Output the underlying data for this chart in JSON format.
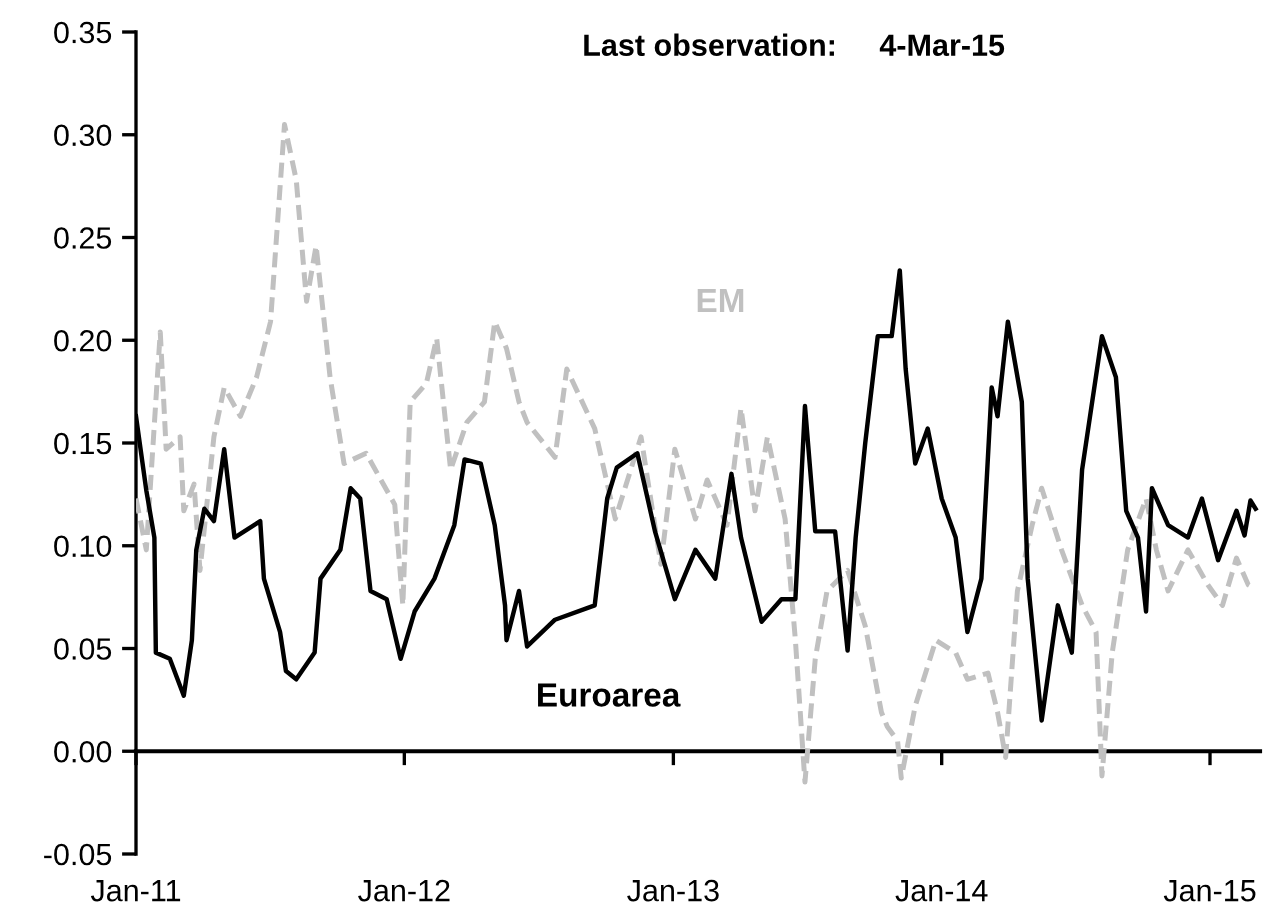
{
  "chart_data": {
    "type": "line",
    "annotations": [
      "Last observation:     4-Mar-15"
    ],
    "xlim": [
      "2011-01-01",
      "2015-03-10"
    ],
    "xticks": [
      {
        "value": "2011-01-01",
        "label": "Jan-11"
      },
      {
        "value": "2012-01-01",
        "label": "Jan-12"
      },
      {
        "value": "2013-01-01",
        "label": "Jan-13"
      },
      {
        "value": "2014-01-01",
        "label": "Jan-14"
      },
      {
        "value": "2015-01-01",
        "label": "Jan-15"
      }
    ],
    "ylim": [
      -0.05,
      0.35
    ],
    "yticks": [
      -0.05,
      {
        "value": 0,
        "label": "0.00"
      },
      0.05,
      {
        "value": 0.1,
        "label": "0.10"
      },
      0.15,
      {
        "value": 0.2,
        "label": "0.20"
      },
      0.25,
      {
        "value": 0.3,
        "label": "0.30"
      },
      0.35
    ],
    "series": [
      {
        "name": "EM",
        "color": "#c0c0c0",
        "line_style": "dashed",
        "x": [
          "2011-01-01",
          "2011-01-15",
          "2011-02-03",
          "2011-02-11",
          "2011-03-02",
          "2011-03-07",
          "2011-03-21",
          "2011-03-29",
          "2011-04-17",
          "2011-05-01",
          "2011-05-23",
          "2011-06-14",
          "2011-07-03",
          "2011-07-22",
          "2011-08-07",
          "2011-08-21",
          "2011-09-03",
          "2011-09-22",
          "2011-10-11",
          "2011-11-10",
          "2011-12-19",
          "2011-12-30",
          "2012-01-09",
          "2012-01-31",
          "2012-02-14",
          "2012-03-04",
          "2012-03-26",
          "2012-04-19",
          "2012-05-03",
          "2012-05-19",
          "2012-06-05",
          "2012-06-16",
          "2012-07-24",
          "2012-08-09",
          "2012-09-16",
          "2012-10-14",
          "2012-11-18",
          "2012-12-15",
          "2013-01-03",
          "2013-01-31",
          "2013-02-16",
          "2013-03-15",
          "2013-04-03",
          "2013-04-22",
          "2013-05-09",
          "2013-06-02",
          "2013-06-16",
          "2013-06-29",
          "2013-07-13",
          "2013-07-29",
          "2013-08-26",
          "2013-09-19",
          "2013-10-11",
          "2013-10-19",
          "2013-11-02",
          "2013-11-07",
          "2013-11-26",
          "2013-12-24",
          "2014-01-20",
          "2014-02-05",
          "2014-03-05",
          "2014-03-18",
          "2014-03-29",
          "2014-04-14",
          "2014-05-04",
          "2014-05-17",
          "2014-06-13",
          "2014-07-11",
          "2014-07-30",
          "2014-08-07",
          "2014-08-21",
          "2014-09-11",
          "2014-10-06",
          "2014-10-20",
          "2014-11-05",
          "2014-12-02",
          "2014-12-29",
          "2015-01-18",
          "2015-02-06",
          "2015-02-22",
          "2015-03-04"
        ],
        "values": [
          0.123,
          0.098,
          0.204,
          0.147,
          0.153,
          0.117,
          0.13,
          0.088,
          0.153,
          0.177,
          0.163,
          0.182,
          0.209,
          0.305,
          0.278,
          0.219,
          0.246,
          0.182,
          0.14,
          0.145,
          0.12,
          0.071,
          0.17,
          0.179,
          0.201,
          0.137,
          0.16,
          0.17,
          0.209,
          0.196,
          0.17,
          0.16,
          0.143,
          0.186,
          0.157,
          0.113,
          0.153,
          0.091,
          0.147,
          0.113,
          0.132,
          0.11,
          0.167,
          0.117,
          0.153,
          0.113,
          0.054,
          -0.015,
          0.045,
          0.078,
          0.088,
          0.061,
          0.019,
          0.012,
          0.005,
          -0.013,
          0.022,
          0.054,
          0.048,
          0.035,
          0.038,
          0.019,
          -0.003,
          0.078,
          0.11,
          0.128,
          0.098,
          0.071,
          0.058,
          -0.012,
          0.048,
          0.098,
          0.123,
          0.098,
          0.078,
          0.098,
          0.081,
          0.071,
          0.094,
          0.081,
          0.079
        ]
      },
      {
        "name": "Euroarea",
        "color": "#000000",
        "line_style": "solid",
        "x": [
          "2011-01-01",
          "2011-01-15",
          "2011-01-26",
          "2011-01-28",
          "2011-02-16",
          "2011-03-07",
          "2011-03-18",
          "2011-03-24",
          "2011-04-04",
          "2011-04-17",
          "2011-05-01",
          "2011-05-15",
          "2011-06-19",
          "2011-06-24",
          "2011-07-16",
          "2011-07-24",
          "2011-08-07",
          "2011-09-01",
          "2011-09-09",
          "2011-10-06",
          "2011-10-20",
          "2011-11-02",
          "2011-11-16",
          "2011-12-08",
          "2011-12-27",
          "2012-01-15",
          "2012-02-11",
          "2012-03-09",
          "2012-03-23",
          "2012-04-14",
          "2012-05-03",
          "2012-05-17",
          "2012-05-19",
          "2012-06-05",
          "2012-06-16",
          "2012-07-24",
          "2012-09-16",
          "2012-10-03",
          "2012-10-16",
          "2012-11-13",
          "2012-12-07",
          "2013-01-03",
          "2013-01-31",
          "2013-02-27",
          "2013-03-21",
          "2013-04-03",
          "2013-05-01",
          "2013-05-28",
          "2013-06-16",
          "2013-06-29",
          "2013-07-13",
          "2013-08-09",
          "2013-08-26",
          "2013-09-06",
          "2013-09-19",
          "2013-10-06",
          "2013-10-25",
          "2013-11-05",
          "2013-11-13",
          "2013-11-26",
          "2013-12-13",
          "2014-01-01",
          "2014-01-20",
          "2014-02-05",
          "2014-02-24",
          "2014-03-10",
          "2014-03-18",
          "2014-04-01",
          "2014-04-20",
          "2014-04-28",
          "2014-05-17",
          "2014-06-08",
          "2014-06-27",
          "2014-07-11",
          "2014-08-07",
          "2014-08-26",
          "2014-09-09",
          "2014-09-25",
          "2014-10-06",
          "2014-10-14",
          "2014-11-05",
          "2014-12-02",
          "2014-12-21",
          "2015-01-12",
          "2015-02-06",
          "2015-02-17",
          "2015-02-25",
          "2015-03-04"
        ],
        "values": [
          0.163,
          0.127,
          0.104,
          0.048,
          0.045,
          0.027,
          0.054,
          0.098,
          0.118,
          0.112,
          0.147,
          0.104,
          0.112,
          0.084,
          0.058,
          0.039,
          0.035,
          0.048,
          0.084,
          0.098,
          0.128,
          0.123,
          0.078,
          0.074,
          0.045,
          0.068,
          0.084,
          0.11,
          0.142,
          0.14,
          0.11,
          0.071,
          0.054,
          0.078,
          0.051,
          0.064,
          0.071,
          0.123,
          0.138,
          0.145,
          0.107,
          0.074,
          0.098,
          0.084,
          0.135,
          0.104,
          0.063,
          0.074,
          0.074,
          0.168,
          0.107,
          0.107,
          0.049,
          0.104,
          0.15,
          0.202,
          0.202,
          0.234,
          0.186,
          0.14,
          0.157,
          0.123,
          0.104,
          0.058,
          0.084,
          0.177,
          0.163,
          0.209,
          0.17,
          0.084,
          0.015,
          0.071,
          0.048,
          0.137,
          0.202,
          0.182,
          0.117,
          0.104,
          0.068,
          0.128,
          0.11,
          0.104,
          0.123,
          0.093,
          0.117,
          0.105,
          0.122,
          0.118
        ]
      }
    ]
  }
}
